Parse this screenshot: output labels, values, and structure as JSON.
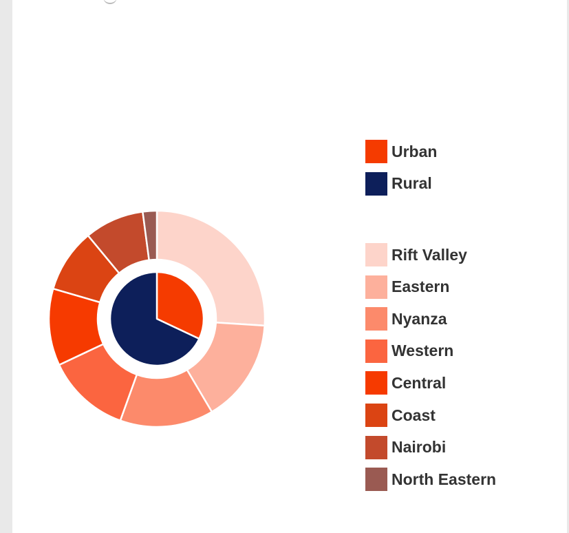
{
  "chart_data": {
    "type": "pie",
    "subtype": "nested-donut",
    "title": "",
    "inner_ring": {
      "series": [
        {
          "name": "Urban",
          "value": 32.0,
          "color": "#f53b00"
        },
        {
          "name": "Rural",
          "value": 68.0,
          "color": "#0d1f5a"
        }
      ]
    },
    "outer_ring": {
      "series": [
        {
          "name": "Rift Valley",
          "value": 26.0,
          "color": "#fdd4ca"
        },
        {
          "name": "Eastern",
          "value": 15.5,
          "color": "#fdb09c"
        },
        {
          "name": "Nyanza",
          "value": 14.0,
          "color": "#fc8a6b"
        },
        {
          "name": "Western",
          "value": 12.5,
          "color": "#fb6540"
        },
        {
          "name": "Central",
          "value": 11.5,
          "color": "#f63a00"
        },
        {
          "name": "Coast",
          "value": 9.5,
          "color": "#db4413"
        },
        {
          "name": "Nairobi",
          "value": 8.9,
          "color": "#c34a2c"
        },
        {
          "name": "North Eastern",
          "value": 2.1,
          "color": "#9a5a52"
        }
      ]
    },
    "legend": {
      "position": "right",
      "groups": [
        [
          "Urban",
          "Rural"
        ],
        [
          "Rift Valley",
          "Eastern",
          "Nyanza",
          "Western",
          "Central",
          "Coast",
          "Nairobi",
          "North Eastern"
        ]
      ]
    }
  }
}
